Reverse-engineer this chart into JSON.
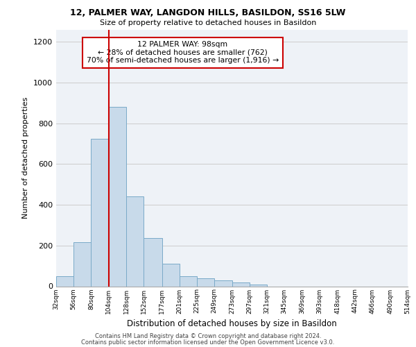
{
  "title1": "12, PALMER WAY, LANGDON HILLS, BASILDON, SS16 5LW",
  "title2": "Size of property relative to detached houses in Basildon",
  "xlabel": "Distribution of detached houses by size in Basildon",
  "ylabel": "Number of detached properties",
  "footnote1": "Contains HM Land Registry data © Crown copyright and database right 2024.",
  "footnote2": "Contains public sector information licensed under the Open Government Licence v3.0.",
  "annotation_line1": "12 PALMER WAY: 98sqm",
  "annotation_line2": "← 28% of detached houses are smaller (762)",
  "annotation_line3": "70% of semi-detached houses are larger (1,916) →",
  "bar_color": "#c8daea",
  "bar_edge_color": "#7aaac8",
  "bar_heights": [
    50,
    215,
    725,
    880,
    440,
    235,
    110,
    48,
    38,
    28,
    20,
    10,
    0,
    0,
    0,
    0,
    0,
    0,
    0,
    0
  ],
  "tick_labels": [
    "32sqm",
    "56sqm",
    "80sqm",
    "104sqm",
    "128sqm",
    "152sqm",
    "177sqm",
    "201sqm",
    "225sqm",
    "249sqm",
    "273sqm",
    "297sqm",
    "321sqm",
    "345sqm",
    "369sqm",
    "393sqm",
    "418sqm",
    "442sqm",
    "466sqm",
    "490sqm",
    "514sqm"
  ],
  "bin_edges": [
    32,
    56,
    80,
    104,
    128,
    152,
    177,
    201,
    225,
    249,
    273,
    297,
    321,
    345,
    369,
    393,
    418,
    442,
    466,
    490,
    514
  ],
  "ylim": [
    0,
    1260
  ],
  "vline_x": 104,
  "vline_color": "#cc0000",
  "grid_color": "#cccccc",
  "plot_bg_color": "#eef2f7"
}
